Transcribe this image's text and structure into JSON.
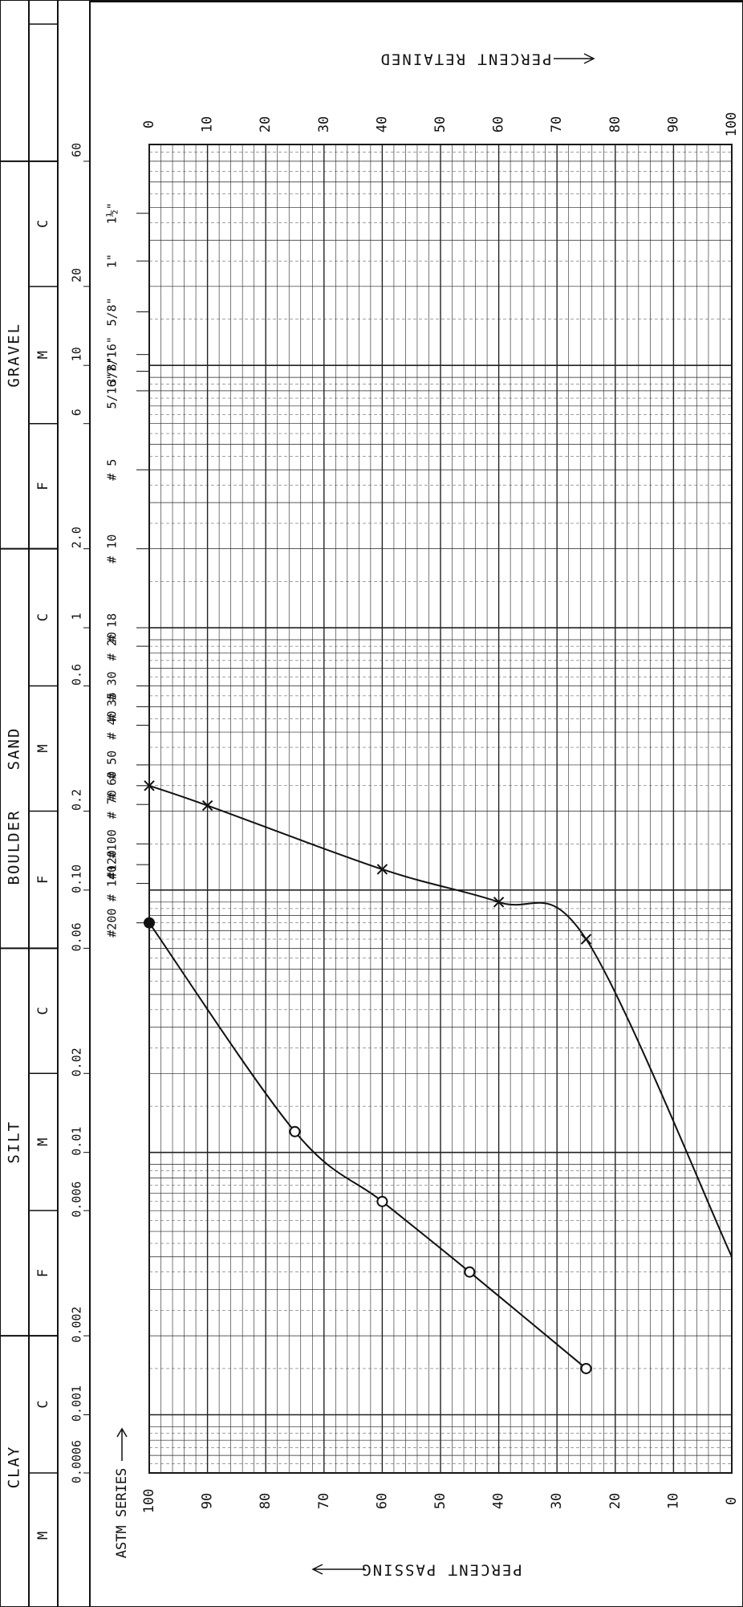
{
  "chart_data": {
    "type": "line",
    "orientation": "rotated-90-clockwise",
    "x_scale": "log",
    "xlim": [
      200,
      0.0006
    ],
    "ylim": [
      0,
      100
    ],
    "grid": true,
    "soil_classes": [
      {
        "name": "BOULDER",
        "subs": [
          {
            "label": "",
            "from": 200,
            "to": 60
          }
        ]
      },
      {
        "name": "GRAVEL",
        "subs": [
          {
            "label": "C",
            "from": 60,
            "to": 20
          },
          {
            "label": "M",
            "from": 20,
            "to": 6
          },
          {
            "label": "F",
            "from": 6,
            "to": 2
          }
        ]
      },
      {
        "name": "SAND",
        "subs": [
          {
            "label": "C",
            "from": 2,
            "to": 0.6
          },
          {
            "label": "M",
            "from": 0.6,
            "to": 0.2
          },
          {
            "label": "F",
            "from": 0.2,
            "to": 0.06
          }
        ]
      },
      {
        "name": "SILT",
        "subs": [
          {
            "label": "C",
            "from": 0.06,
            "to": 0.02
          },
          {
            "label": "M",
            "from": 0.02,
            "to": 0.006
          },
          {
            "label": "F",
            "from": 0.006,
            "to": 0.002
          }
        ]
      },
      {
        "name": "CLAY",
        "subs": [
          {
            "label": "C",
            "from": 0.002,
            "to": 0.0006
          },
          {
            "label": "M",
            "from": 0.0006,
            "to": 0.0002
          }
        ]
      }
    ],
    "size_ticks": [
      {
        "label": "60",
        "v": 60
      },
      {
        "label": "20",
        "v": 20
      },
      {
        "label": "10",
        "v": 10
      },
      {
        "label": "6",
        "v": 6
      },
      {
        "label": "2.0",
        "v": 2
      },
      {
        "label": "1",
        "v": 1
      },
      {
        "label": "0.6",
        "v": 0.6
      },
      {
        "label": "0.2",
        "v": 0.2
      },
      {
        "label": "0.10",
        "v": 0.1
      },
      {
        "label": "0.06",
        "v": 0.06
      },
      {
        "label": "0.02",
        "v": 0.02
      },
      {
        "label": "0.01",
        "v": 0.01
      },
      {
        "label": "0.006",
        "v": 0.006
      },
      {
        "label": "0.002",
        "v": 0.002
      },
      {
        "label": "0.001",
        "v": 0.001
      },
      {
        "label": "0.0006",
        "v": 0.0006
      }
    ],
    "sieve_label": "ASTM SERIES",
    "sieves": [
      {
        "label": "1½\"",
        "v": 38
      },
      {
        "label": "1\"",
        "v": 25
      },
      {
        "label": "5/8\"",
        "v": 16
      },
      {
        "label": "7/16\"",
        "v": 11
      },
      {
        "label": "3/8\"",
        "v": 9.5
      },
      {
        "label": "5/16\"",
        "v": 8
      },
      {
        "label": "# 5",
        "v": 4
      },
      {
        "label": "# 10",
        "v": 2
      },
      {
        "label": "# 18",
        "v": 1
      },
      {
        "label": "# 20",
        "v": 0.85
      },
      {
        "label": "# 30",
        "v": 0.6
      },
      {
        "label": "# 35",
        "v": 0.5
      },
      {
        "label": "# 40",
        "v": 0.425
      },
      {
        "label": "# 50",
        "v": 0.3
      },
      {
        "label": "# 60",
        "v": 0.25
      },
      {
        "label": "# 70",
        "v": 0.212
      },
      {
        "label": "#100",
        "v": 0.15
      },
      {
        "label": "#120",
        "v": 0.125
      },
      {
        "label": "# 140",
        "v": 0.106
      },
      {
        "label": "#200",
        "v": 0.075
      }
    ],
    "passing_ticks": [
      100,
      90,
      80,
      70,
      60,
      50,
      40,
      30,
      20,
      10,
      0
    ],
    "retained_ticks": [
      0,
      10,
      20,
      30,
      40,
      50,
      60,
      70,
      80,
      90,
      100
    ],
    "passing_label": "PERCENT PASSING",
    "retained_label": "PERCENT RETAINED",
    "series": [
      {
        "marker": "circle",
        "points": [
          [
            0.075,
            100
          ],
          [
            0.012,
            75
          ],
          [
            0.0065,
            60
          ],
          [
            0.0035,
            45
          ],
          [
            0.0015,
            25
          ]
        ]
      },
      {
        "marker": "cross",
        "points": [
          [
            0.25,
            100
          ],
          [
            0.21,
            90
          ],
          [
            0.12,
            60
          ],
          [
            0.09,
            40
          ],
          [
            0.065,
            25
          ],
          [
            0.004,
            0
          ]
        ]
      }
    ]
  }
}
